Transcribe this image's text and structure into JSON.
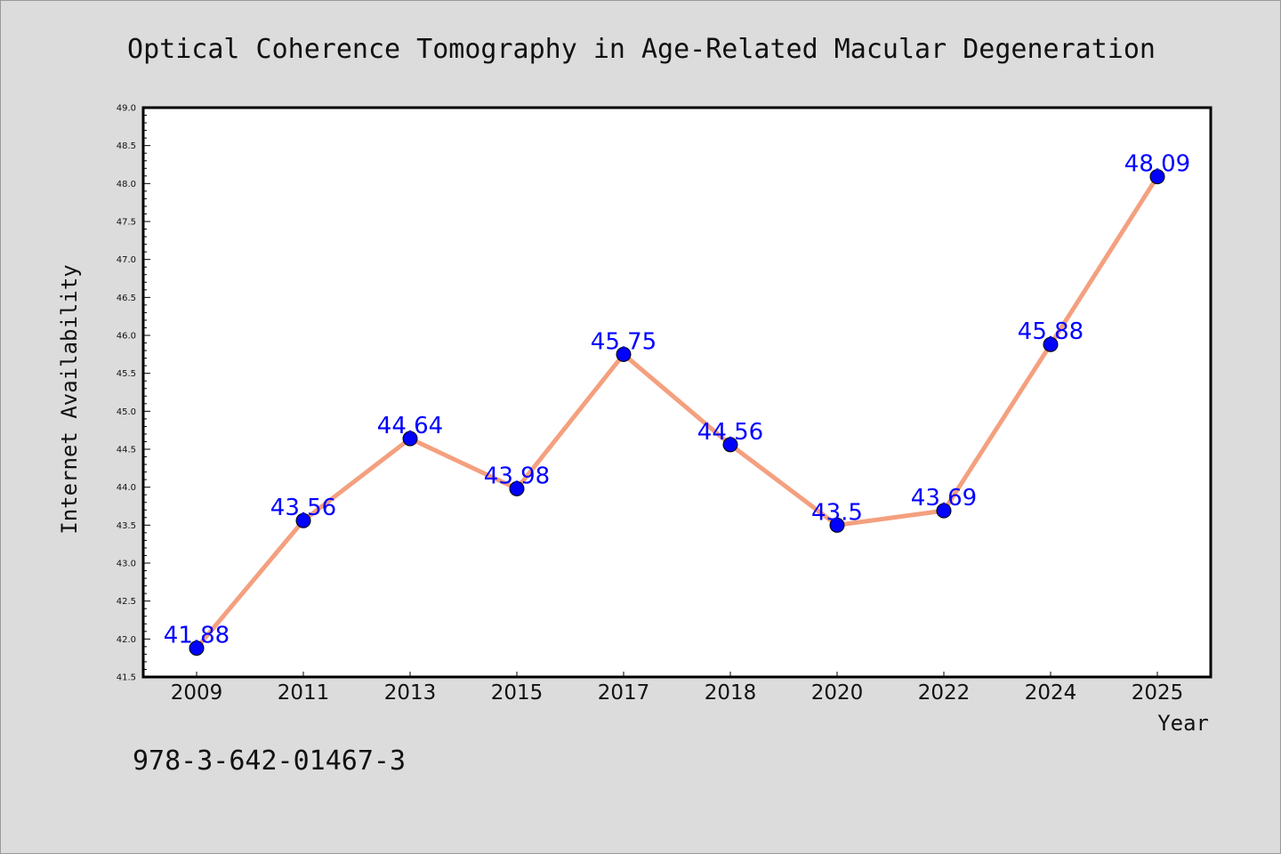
{
  "chart_data": {
    "type": "line",
    "title": "Optical Coherence Tomography in Age-Related Macular Degeneration",
    "xlabel": "Year",
    "ylabel": "Internet Availability",
    "categories": [
      "2009",
      "2011",
      "2013",
      "2015",
      "2017",
      "2018",
      "2020",
      "2022",
      "2024",
      "2025"
    ],
    "series": [
      {
        "values": [
          41.88,
          43.56,
          44.64,
          43.98,
          45.75,
          44.56,
          43.5,
          43.69,
          45.88,
          48.09
        ],
        "labels": [
          "41.88",
          "43.56",
          "44.64",
          "43.98",
          "45.75",
          "44.56",
          "43.5",
          "43.69",
          "45.88",
          "48.09"
        ]
      }
    ],
    "ylim": [
      41.5,
      49.0
    ],
    "yticks": [
      "41.5",
      "42.0",
      "42.5",
      "43.0",
      "43.5",
      "44.0",
      "44.5",
      "45.0",
      "45.5",
      "46.0",
      "46.5",
      "47.0",
      "47.5",
      "48.0",
      "48.5",
      "49.0"
    ],
    "grid": false,
    "line_color": "#f4a07f",
    "marker_color": "#0000ff",
    "label_color": "#0000ff",
    "background_color": "#dcdcdc",
    "plot_background": "#ffffff"
  },
  "footer": {
    "isbn": "978-3-642-01467-3"
  }
}
